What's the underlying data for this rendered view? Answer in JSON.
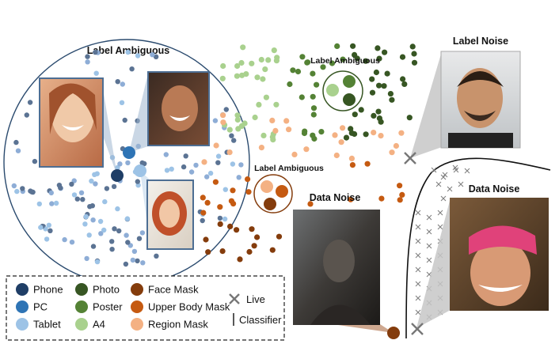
{
  "titles": {
    "main_cluster": "Label Ambiguous",
    "green_cluster": "Label Ambiguous",
    "orange_cluster": "Label Ambiguous",
    "label_noise": "Label Noise",
    "data_noise_center": "Data Noise",
    "data_noise_right": "Data Noise"
  },
  "colors": {
    "phone": "#1f3e66",
    "pc": "#2e74b5",
    "tablet": "#9dc3e6",
    "photo": "#375623",
    "poster": "#548235",
    "a4": "#a9d18e",
    "face_mask": "#843c0c",
    "upper_body_mask": "#c55a11",
    "region_mask": "#f4b183",
    "scatter_blue": "#8eadd6",
    "scatter_slate": "#5b7393",
    "live": "#777777"
  },
  "legend": {
    "col1": [
      {
        "label": "Phone",
        "key": "phone"
      },
      {
        "label": "PC",
        "key": "pc"
      },
      {
        "label": "Tablet",
        "key": "tablet"
      }
    ],
    "col2": [
      {
        "label": "Photo",
        "key": "photo"
      },
      {
        "label": "Poster",
        "key": "poster"
      },
      {
        "label": "A4",
        "key": "a4"
      }
    ],
    "col3": [
      {
        "label": "Face Mask",
        "key": "face_mask"
      },
      {
        "label": "Upper Body Mask",
        "key": "upper_body_mask"
      },
      {
        "label": "Region Mask",
        "key": "region_mask"
      }
    ],
    "live_label": "Live",
    "classifier_label": "Classifier"
  }
}
